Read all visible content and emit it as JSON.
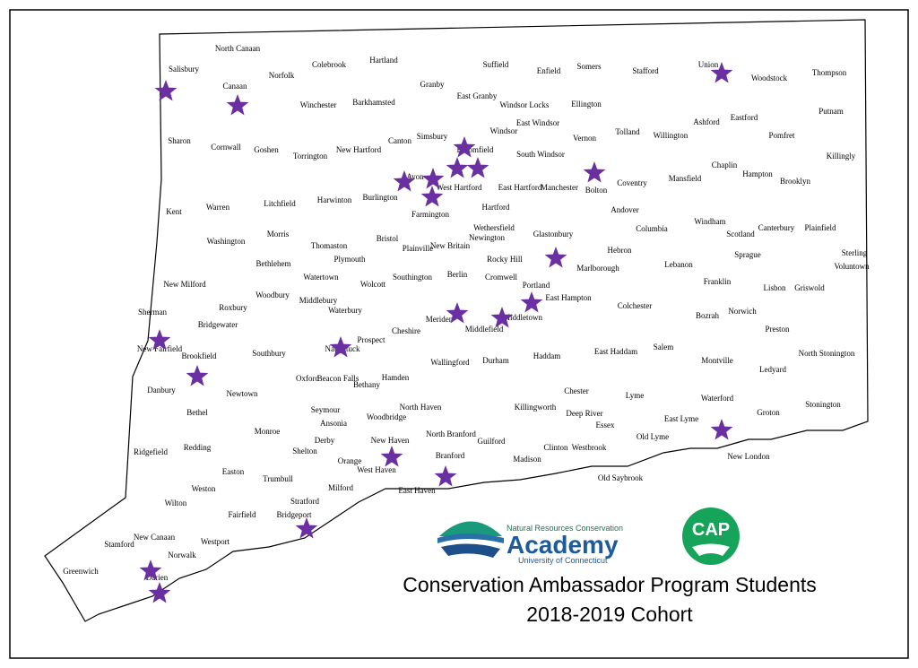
{
  "towns": [
    "Salisbury",
    "North Canaan",
    "Canaan",
    "Norfolk",
    "Colebrook",
    "Hartland",
    "Granby",
    "Suffield",
    "Enfield",
    "Somers",
    "Stafford",
    "Union",
    "Woodstock",
    "Thompson",
    "East Granby",
    "Windsor Locks",
    "East Windsor",
    "Ellington",
    "Winchester",
    "Barkhamsted",
    "Simsbury",
    "Windsor",
    "Tolland",
    "Willington",
    "Ashford",
    "Eastford",
    "Pomfret",
    "Putnam",
    "Killingly",
    "Sharon",
    "Cornwall",
    "Goshen",
    "Torrington",
    "New Hartford",
    "Canton",
    "Bloomfield",
    "South Windsor",
    "Vernon",
    "Coventry",
    "Mansfield",
    "Chaplin",
    "Hampton",
    "Brooklyn",
    "Avon",
    "West Hartford",
    "East Hartford",
    "Manchester",
    "Bolton",
    "Andover",
    "Kent",
    "Warren",
    "Litchfield",
    "Harwinton",
    "Burlington",
    "Farmington",
    "Hartford",
    "Columbia",
    "Windham",
    "Scotland",
    "Canterbury",
    "Plainfield",
    "Washington",
    "Morris",
    "Thomaston",
    "Bristol",
    "New Britain",
    "Wethersfield",
    "Newington",
    "Glastonbury",
    "Hebron",
    "Lebanon",
    "Sprague",
    "Sterling",
    "Voluntown",
    "Plymouth",
    "Plainville",
    "Rocky Hill",
    "Marlborough",
    "Franklin",
    "Lisbon",
    "Griswold",
    "Bethlehem",
    "Watertown",
    "Wolcott",
    "Southington",
    "Berlin",
    "Cromwell",
    "Portland",
    "New Milford",
    "Roxbury",
    "Woodbury",
    "Middlebury",
    "Waterbury",
    "East Hampton",
    "Colchester",
    "Bozrah",
    "Norwich",
    "Sherman",
    "Bridgewater",
    "Cheshire",
    "Meriden",
    "Middlefield",
    "Middletown",
    "Preston",
    "Prospect",
    "Naugatuck",
    "Southbury",
    "New Fairfield",
    "Brookfield",
    "Salem",
    "East Haddam",
    "Haddam",
    "Durham",
    "Wallingford",
    "Montville",
    "North Stonington",
    "Ledyard",
    "Oxford",
    "Beacon Falls",
    "Bethany",
    "Hamden",
    "Danbury",
    "Newtown",
    "Chester",
    "Lyme",
    "Waterford",
    "North Haven",
    "Seymour",
    "Woodbridge",
    "Killingworth",
    "Deep River",
    "Stonington",
    "Groton",
    "Bethel",
    "Essex",
    "East Lyme",
    "Monroe",
    "Ansonia",
    "Derby",
    "North Branford",
    "Guilford",
    "Clinton",
    "Westbrook",
    "Old Lyme",
    "Redding",
    "Ridgefield",
    "Shelton",
    "Orange",
    "New Haven",
    "West Haven",
    "Branford",
    "Madison",
    "New London",
    "Easton",
    "Trumbull",
    "Milford",
    "Old Saybrook",
    "Weston",
    "East Haven",
    "Wilton",
    "Stratford",
    "Fairfield",
    "Bridgeport",
    "New Canaan",
    "Stamford",
    "Norwalk",
    "Westport",
    "Greenwich",
    "Darien"
  ],
  "logo": {
    "org": "Natural Resources Conservation",
    "name": "Academy",
    "university": "University of Connecticut",
    "badge": "CAP"
  },
  "title": {
    "line1": "Conservation Ambassador Program Students",
    "line2": "2018-2019 Cohort"
  }
}
